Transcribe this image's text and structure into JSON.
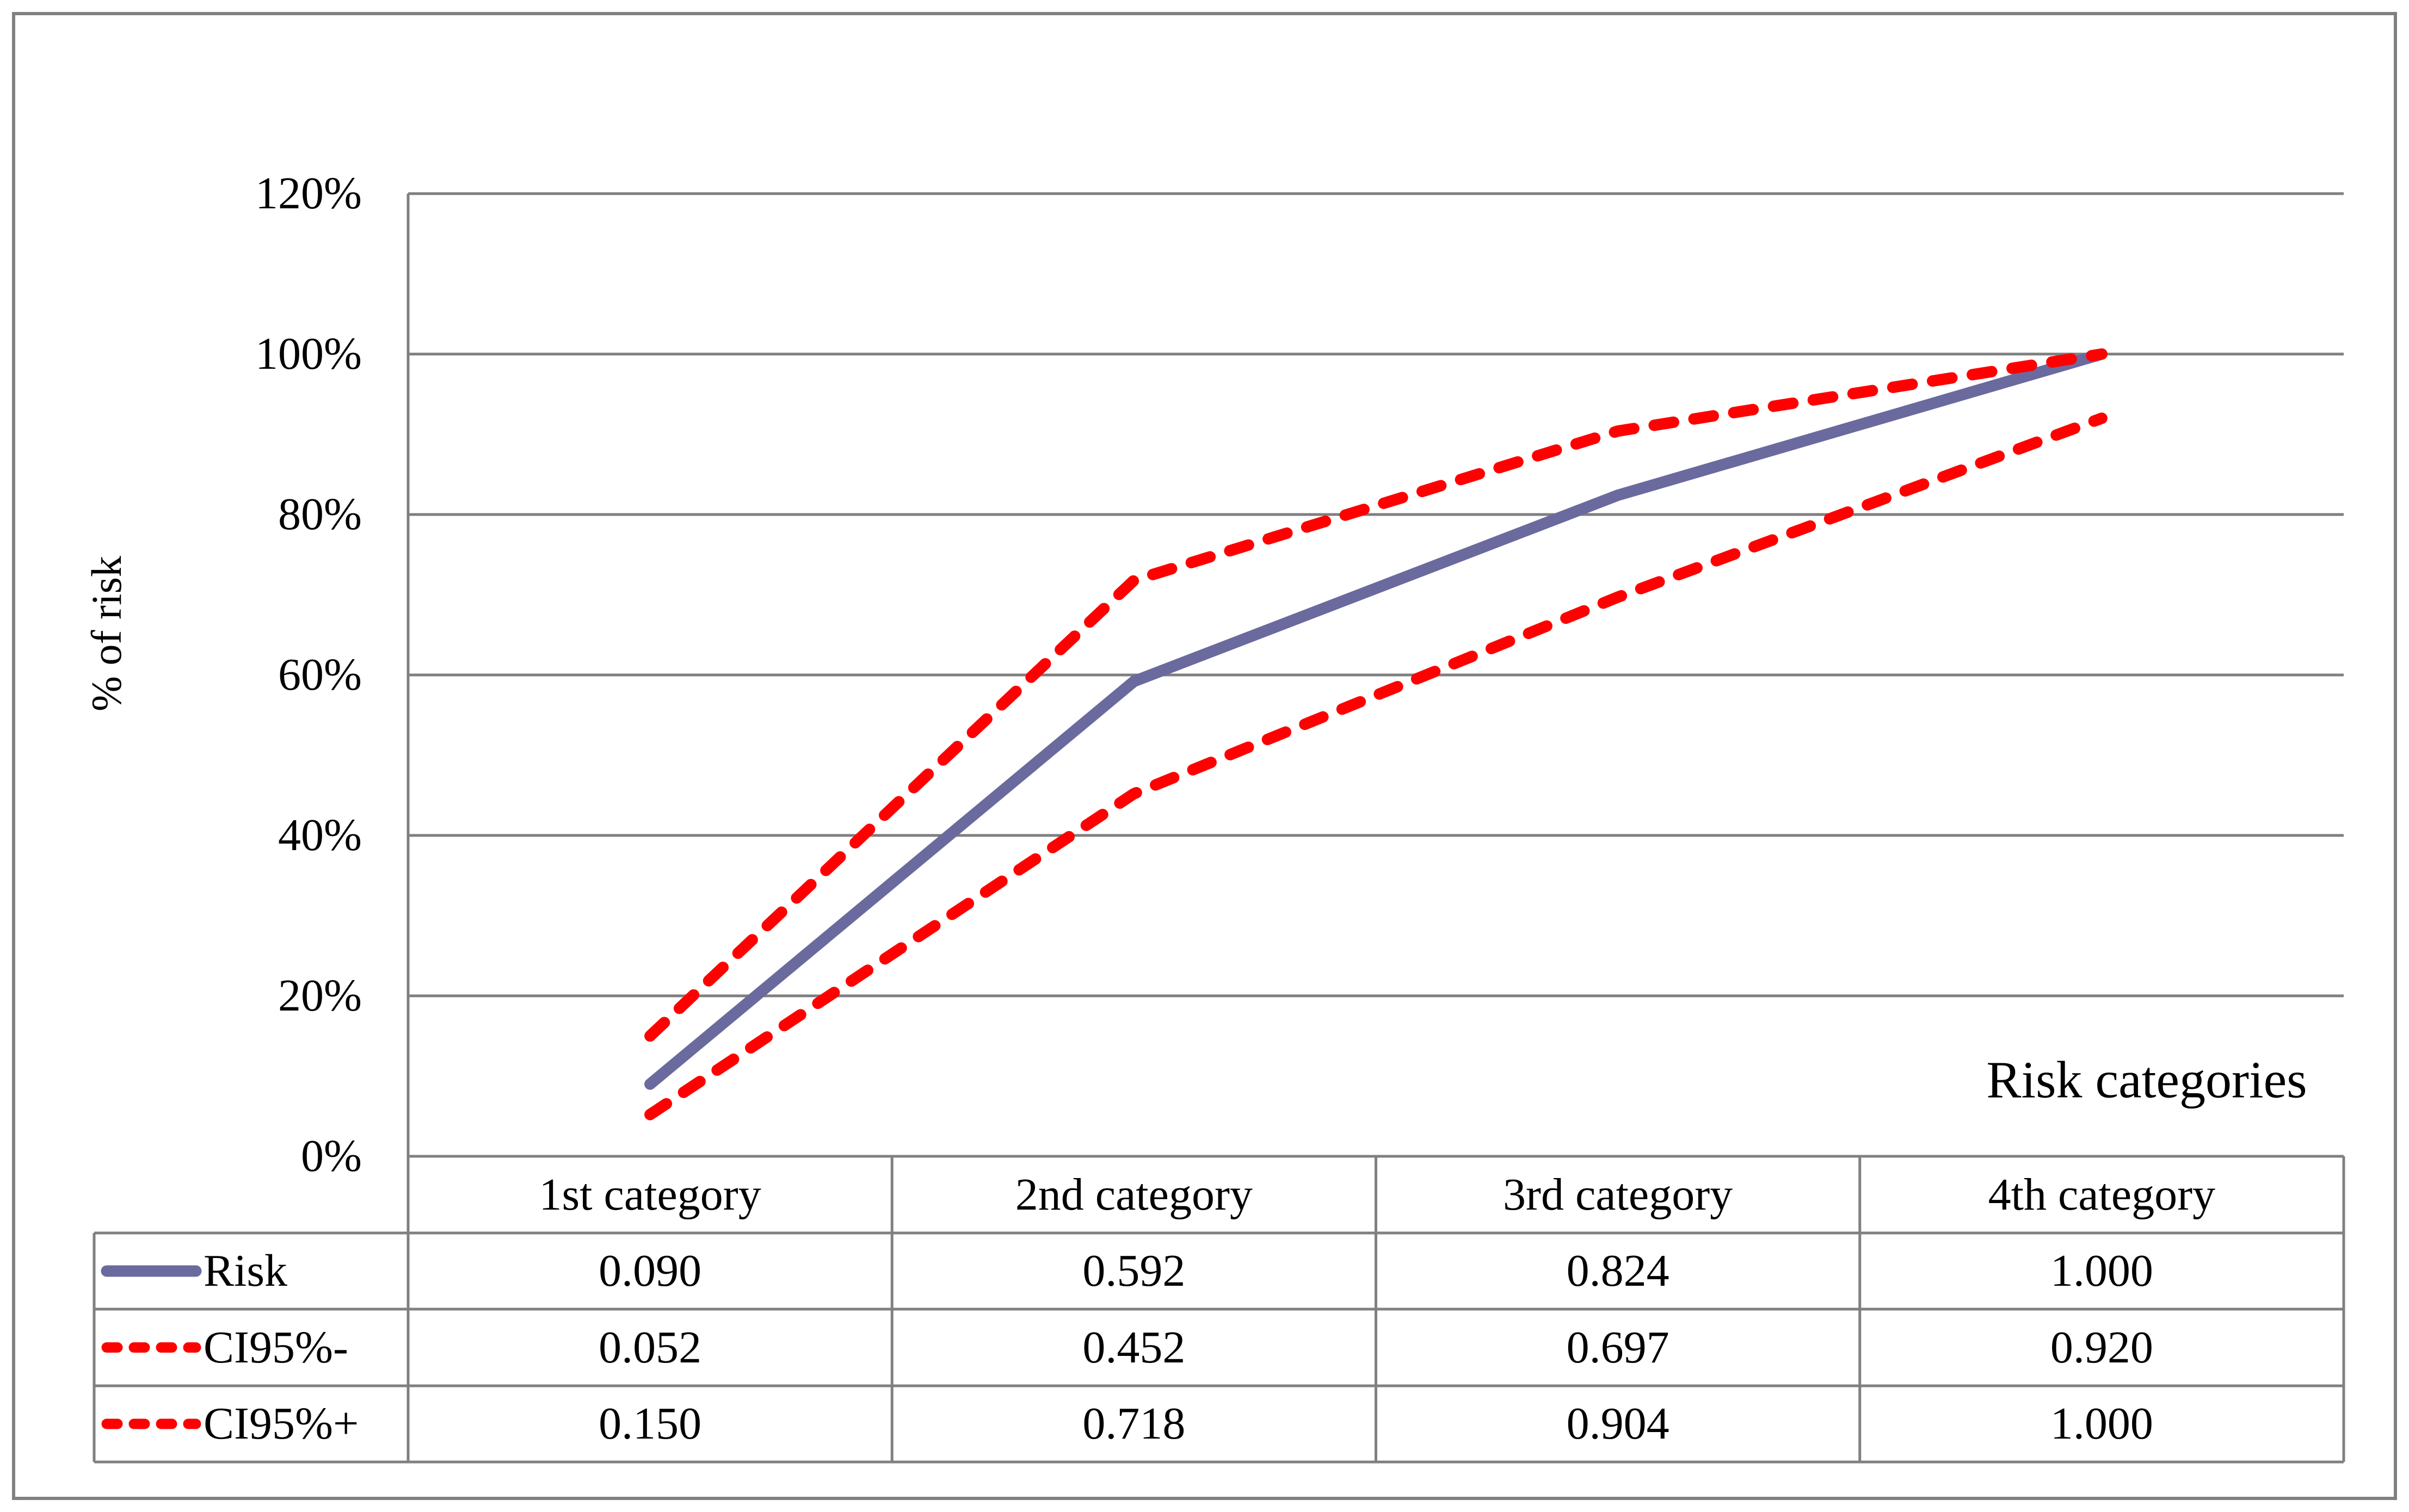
{
  "figure": {
    "y_axis_title": "% of risk",
    "x_axis_title": "Risk categories"
  },
  "chart_data": {
    "type": "line",
    "categories": [
      "1st category",
      "2nd category",
      "3rd category",
      "4th category"
    ],
    "series": [
      {
        "name": "Risk",
        "values": [
          0.09,
          0.592,
          0.824,
          1.0
        ],
        "color": "#6A6A9E",
        "style": "solid"
      },
      {
        "name": "CI95%-",
        "values": [
          0.052,
          0.452,
          0.697,
          0.92
        ],
        "color": "#FF0000",
        "style": "dashed"
      },
      {
        "name": "CI95%+",
        "values": [
          0.15,
          0.718,
          0.904,
          1.0
        ],
        "color": "#FF0000",
        "style": "dashed"
      }
    ],
    "title": "",
    "xlabel": "Risk categories",
    "ylabel": "% of risk",
    "ylim": [
      0,
      1.2
    ],
    "ytick_labels": [
      "0%",
      "20%",
      "40%",
      "60%",
      "80%",
      "100%",
      "120%"
    ],
    "grid": true,
    "legend_position": "table-left"
  },
  "table": {
    "column_headers": [
      "1st category",
      "2nd category",
      "3rd category",
      "4th category"
    ],
    "rows": [
      {
        "label": "Risk",
        "values": [
          "0.090",
          "0.592",
          "0.824",
          "1.000"
        ]
      },
      {
        "label": "CI95%-",
        "values": [
          "0.052",
          "0.452",
          "0.697",
          "0.920"
        ]
      },
      {
        "label": "CI95%+",
        "values": [
          "0.150",
          "0.718",
          "0.904",
          "1.000"
        ]
      }
    ]
  },
  "colors": {
    "risk_line": "#6A6A9E",
    "ci_line": "#FF0000",
    "gridline": "#7F7F7F",
    "table_border": "#808080",
    "figure_border": "#808080",
    "text": "#000000"
  }
}
